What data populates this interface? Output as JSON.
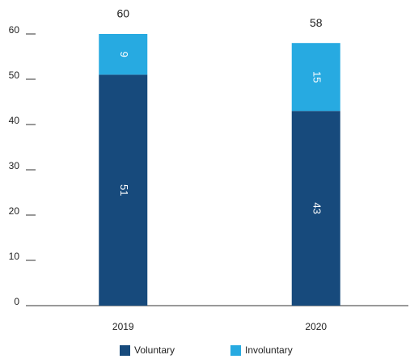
{
  "chart_data": {
    "type": "stacked_bar",
    "categories": [
      "2019",
      "2020"
    ],
    "series": [
      {
        "name": "Voluntary",
        "color": "#174a7c",
        "values": [
          51,
          43
        ]
      },
      {
        "name": "Involuntary",
        "color": "#27aae1",
        "values": [
          9,
          15
        ]
      }
    ],
    "totals": [
      60,
      58
    ],
    "ylim": [
      0,
      60
    ],
    "yticks": [
      0,
      10,
      20,
      30,
      40,
      50,
      60
    ],
    "legend": "bottom"
  }
}
